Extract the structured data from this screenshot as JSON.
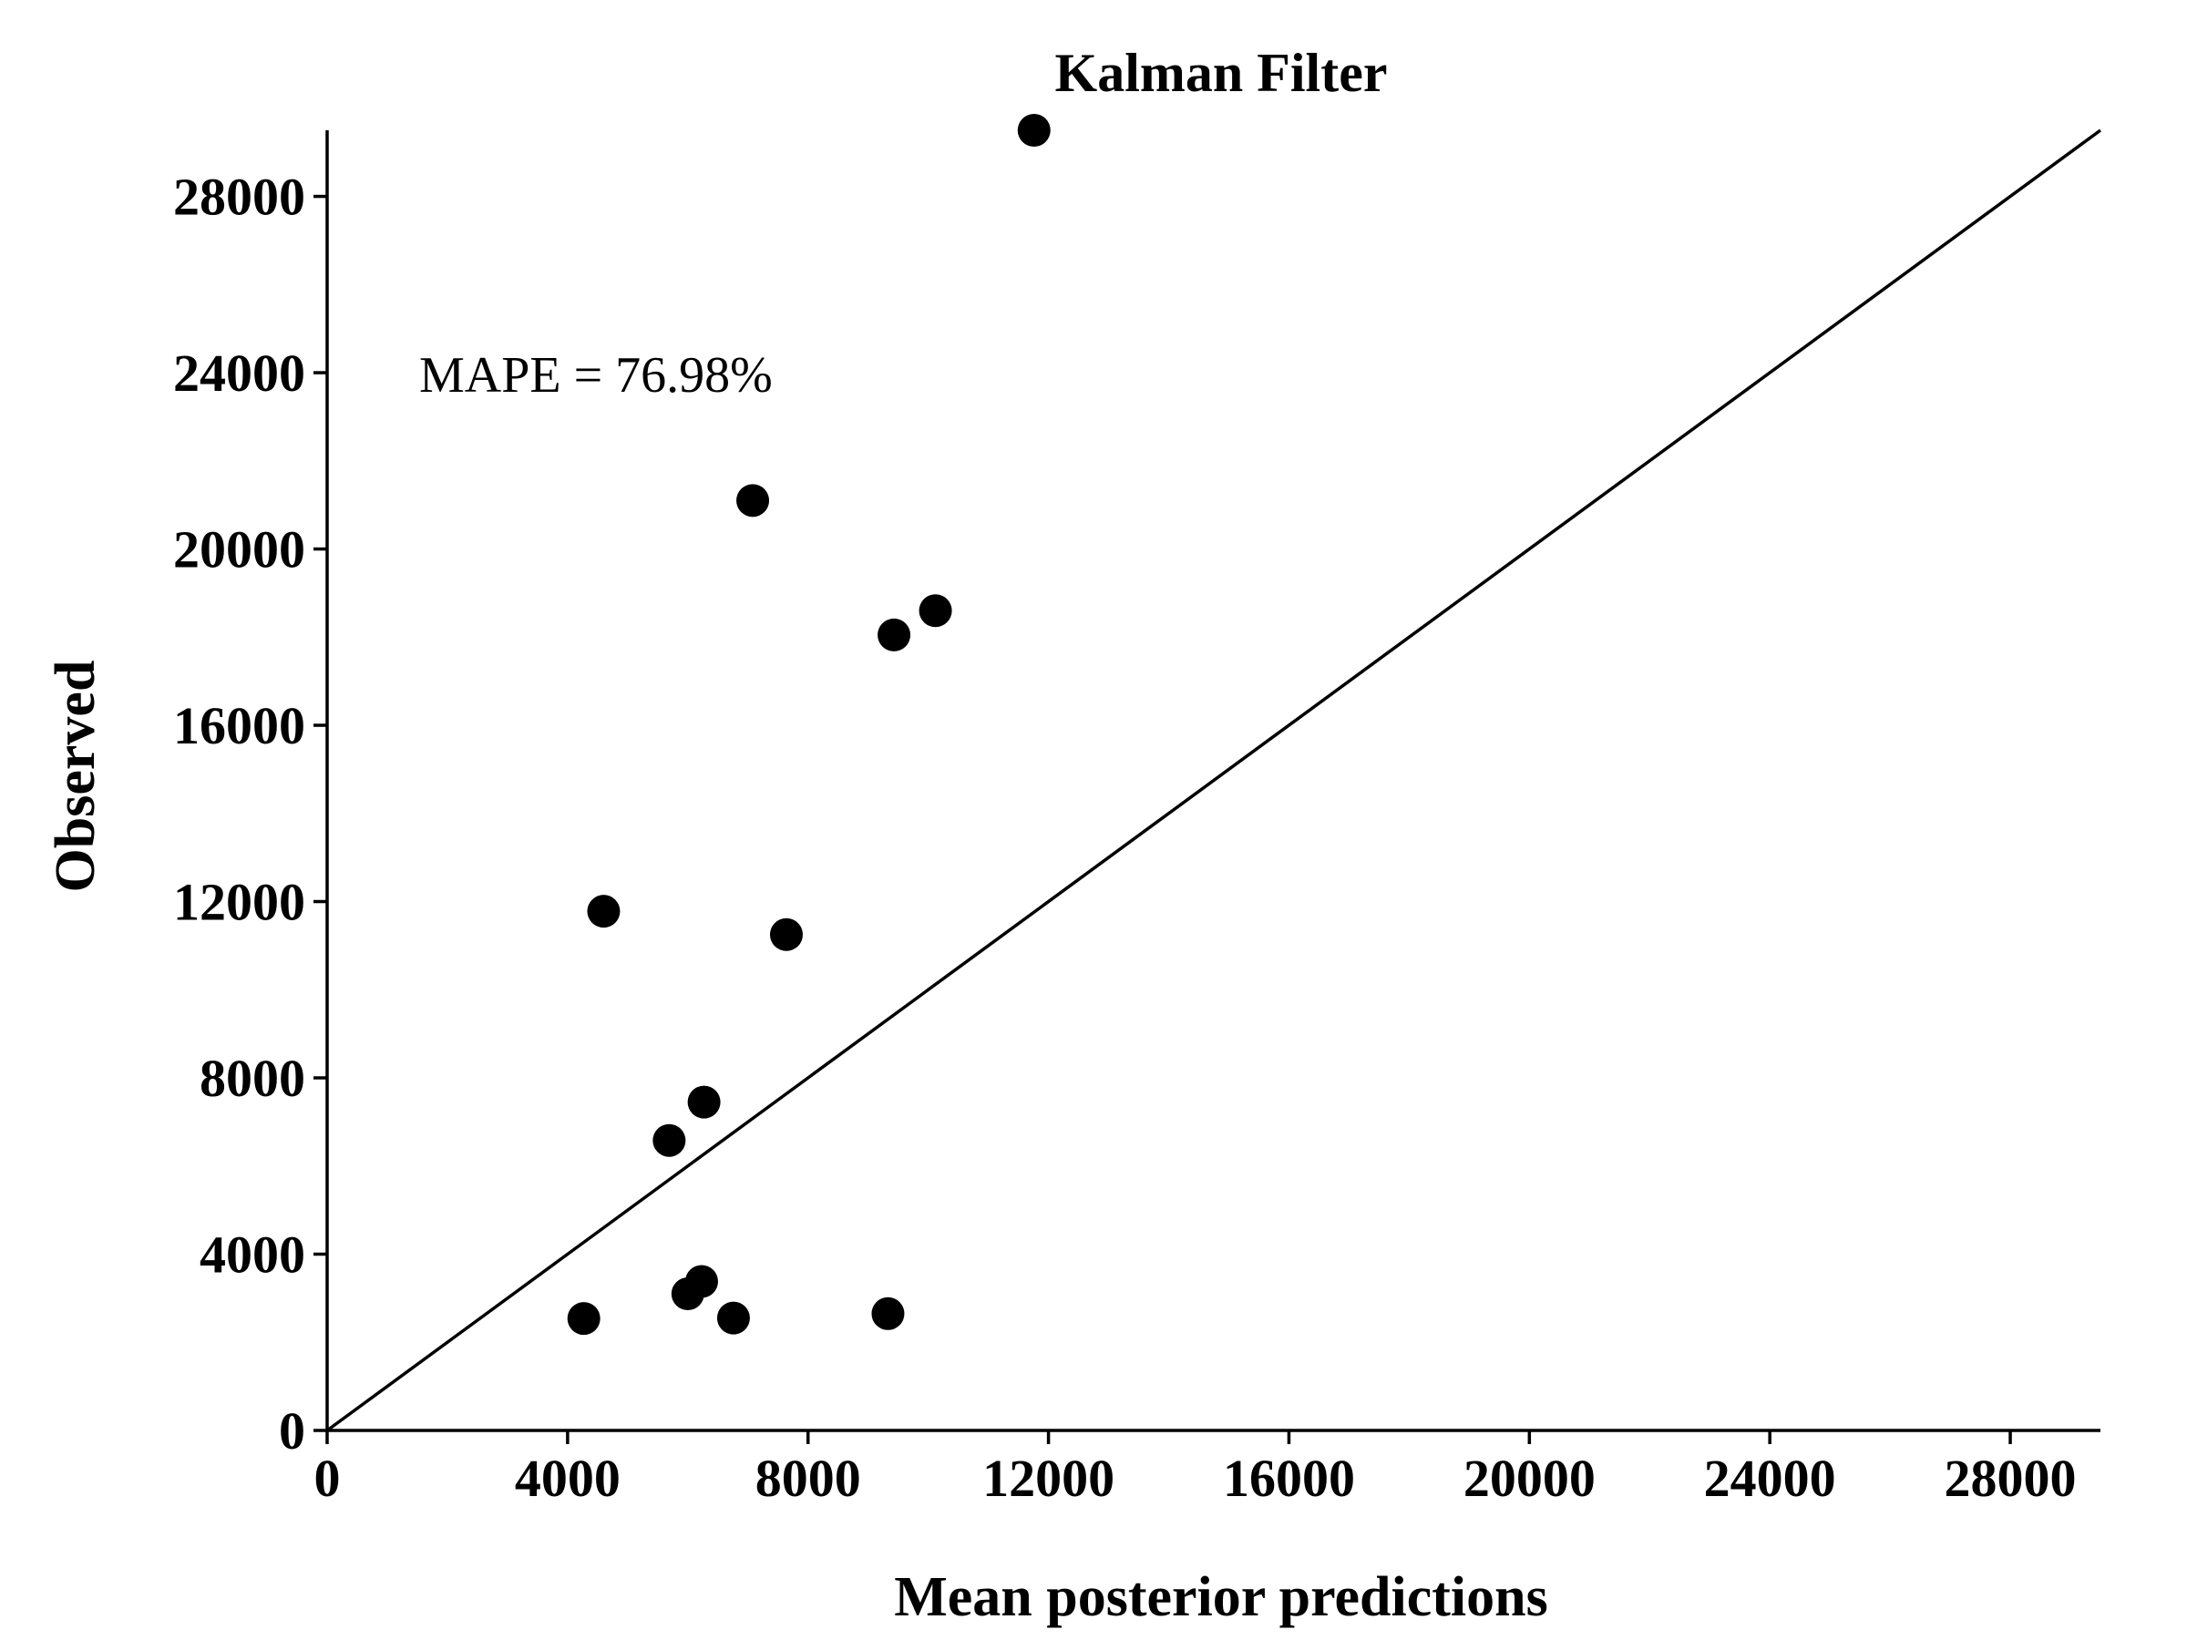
{
  "chart_data": {
    "type": "scatter",
    "title": "Kalman Filter",
    "xlabel": "Mean posterior predictions",
    "ylabel": "Observed",
    "xlim": [
      0,
      29500
    ],
    "ylim": [
      0,
      29500
    ],
    "x_ticks": [
      0,
      4000,
      8000,
      12000,
      16000,
      20000,
      24000,
      28000
    ],
    "y_ticks": [
      0,
      4000,
      8000,
      12000,
      16000,
      20000,
      24000,
      28000
    ],
    "x_tick_labels": [
      "0",
      "4000",
      "8000",
      "12000",
      "16000",
      "20000",
      "24000",
      "28000"
    ],
    "y_tick_labels": [
      "0",
      "4000",
      "8000",
      "12000",
      "16000",
      "20000",
      "24000",
      "28000"
    ],
    "grid": false,
    "reference_line": "y = x",
    "annotation": "MAPE = 76.98%",
    "points": [
      {
        "x": 11760,
        "y": 29500
      },
      {
        "x": 7080,
        "y": 21100
      },
      {
        "x": 10120,
        "y": 18600
      },
      {
        "x": 9430,
        "y": 18050
      },
      {
        "x": 4600,
        "y": 11780
      },
      {
        "x": 7640,
        "y": 11250
      },
      {
        "x": 6270,
        "y": 7450
      },
      {
        "x": 5690,
        "y": 6580
      },
      {
        "x": 6230,
        "y": 3380
      },
      {
        "x": 6000,
        "y": 3100
      },
      {
        "x": 4270,
        "y": 2540
      },
      {
        "x": 6760,
        "y": 2550
      },
      {
        "x": 9330,
        "y": 2650
      }
    ]
  }
}
